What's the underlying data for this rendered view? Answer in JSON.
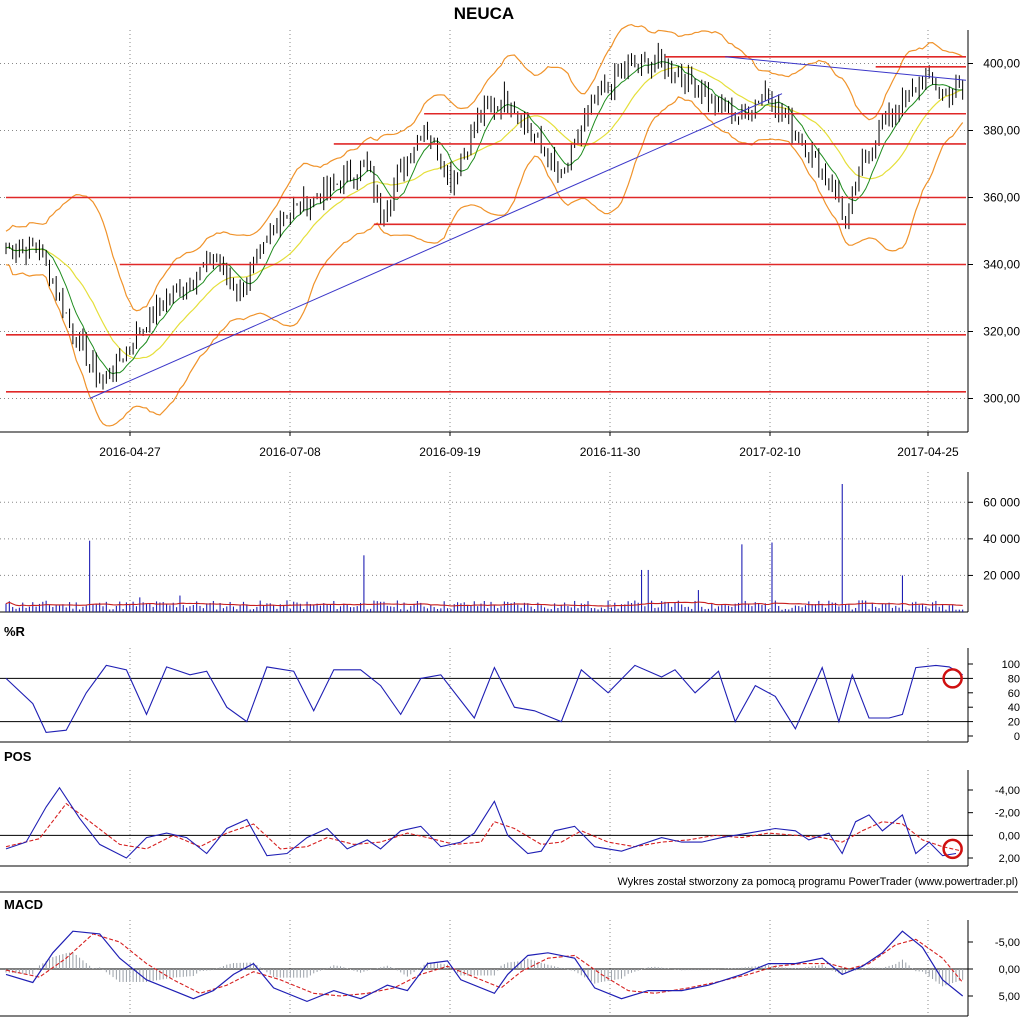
{
  "chart_data": {
    "type": "line",
    "title": "NEUCA",
    "credit": "Wykres został stworzony za pomocą programu PowerTrader (www.powertrader.pl)",
    "x_tick_labels": [
      "2016-04-27",
      "2016-07-08",
      "2016-09-19",
      "2016-11-30",
      "2017-02-10",
      "2017-04-25"
    ],
    "colors": {
      "candles": "#000000",
      "bollinger": "#f0932b",
      "ma_short": "#1e8c1e",
      "ma_long": "#e5df3a",
      "horizontal_levels": "#e02828",
      "trendline": "#3b37c9",
      "indicator_blue": "#1f1fb4",
      "indicator_red": "#d62020",
      "volume_avg": "#c81e1e",
      "grid": "#888888"
    },
    "panels": [
      {
        "id": "price",
        "label": "",
        "y_tick_labels": [
          "400,00",
          "380,00",
          "360,00",
          "340,00",
          "320,00",
          "300,00"
        ],
        "ylim": [
          290,
          410
        ],
        "price_path": [
          [
            0,
            345
          ],
          [
            10,
            345
          ],
          [
            20,
            320
          ],
          [
            28,
            305
          ],
          [
            33,
            310
          ],
          [
            40,
            320
          ],
          [
            48,
            330
          ],
          [
            55,
            335
          ],
          [
            62,
            342
          ],
          [
            70,
            332
          ],
          [
            75,
            340
          ],
          [
            82,
            355
          ],
          [
            90,
            358
          ],
          [
            100,
            365
          ],
          [
            108,
            370
          ],
          [
            112,
            355
          ],
          [
            120,
            372
          ],
          [
            125,
            382
          ],
          [
            133,
            365
          ],
          [
            142,
            385
          ],
          [
            150,
            390
          ],
          [
            160,
            375
          ],
          [
            166,
            365
          ],
          [
            175,
            388
          ],
          [
            185,
            398
          ],
          [
            195,
            401
          ],
          [
            205,
            395
          ],
          [
            212,
            388
          ],
          [
            220,
            384
          ],
          [
            227,
            392
          ],
          [
            232,
            385
          ],
          [
            240,
            374
          ],
          [
            248,
            362
          ],
          [
            251,
            352
          ],
          [
            256,
            370
          ],
          [
            262,
            382
          ],
          [
            268,
            388
          ],
          [
            274,
            395
          ],
          [
            280,
            392
          ],
          [
            286,
            392
          ]
        ],
        "horizontal_levels": [
          {
            "value": 402,
            "from": 197,
            "to": 287
          },
          {
            "value": 399,
            "from": 260,
            "to": 287
          },
          {
            "value": 385,
            "from": 125,
            "to": 287
          },
          {
            "value": 376,
            "from": 98,
            "to": 287
          },
          {
            "value": 360,
            "from": 0,
            "to": 287
          },
          {
            "value": 352,
            "from": 110,
            "to": 287
          },
          {
            "value": 340,
            "from": 34,
            "to": 287
          },
          {
            "value": 319,
            "from": 0,
            "to": 287
          },
          {
            "value": 302,
            "from": 0,
            "to": 287
          }
        ],
        "trendlines": [
          {
            "from": [
              25,
              300
            ],
            "to": [
              232,
              391
            ]
          },
          {
            "from": [
              215,
              402
            ],
            "to": [
              287,
              395
            ]
          }
        ]
      },
      {
        "id": "volume",
        "label": "",
        "y_tick_labels": [
          "60 000",
          "40 000",
          "20 000"
        ],
        "ylim": [
          0,
          70000
        ],
        "baseline_volume": 4000,
        "spikes": [
          [
            25,
            39000
          ],
          [
            107,
            31000
          ],
          [
            190,
            23000
          ],
          [
            192,
            23000
          ],
          [
            220,
            37000
          ],
          [
            229,
            38000
          ],
          [
            250,
            70000
          ],
          [
            268,
            20000
          ],
          [
            40,
            8000
          ],
          [
            52,
            9000
          ],
          [
            143,
            6000
          ],
          [
            207,
            12000
          ]
        ]
      },
      {
        "id": "williams_r",
        "label": "%R",
        "y_tick_labels": [
          "100",
          "80",
          "60",
          "40",
          "20",
          "0"
        ],
        "ylim": [
          0,
          100
        ],
        "reference_lines": [
          80,
          20
        ],
        "path": [
          [
            0,
            80
          ],
          [
            8,
            45
          ],
          [
            12,
            5
          ],
          [
            18,
            8
          ],
          [
            24,
            60
          ],
          [
            30,
            98
          ],
          [
            36,
            92
          ],
          [
            42,
            30
          ],
          [
            48,
            96
          ],
          [
            55,
            85
          ],
          [
            60,
            90
          ],
          [
            66,
            40
          ],
          [
            72,
            20
          ],
          [
            78,
            96
          ],
          [
            86,
            90
          ],
          [
            92,
            35
          ],
          [
            98,
            92
          ],
          [
            106,
            92
          ],
          [
            112,
            70
          ],
          [
            118,
            30
          ],
          [
            124,
            80
          ],
          [
            130,
            85
          ],
          [
            140,
            25
          ],
          [
            146,
            95
          ],
          [
            152,
            40
          ],
          [
            158,
            35
          ],
          [
            166,
            20
          ],
          [
            172,
            92
          ],
          [
            180,
            60
          ],
          [
            188,
            98
          ],
          [
            196,
            82
          ],
          [
            200,
            92
          ],
          [
            206,
            60
          ],
          [
            213,
            90
          ],
          [
            218,
            20
          ],
          [
            224,
            70
          ],
          [
            230,
            55
          ],
          [
            236,
            10
          ],
          [
            244,
            95
          ],
          [
            249,
            20
          ],
          [
            253,
            85
          ],
          [
            258,
            25
          ],
          [
            264,
            25
          ],
          [
            268,
            30
          ],
          [
            272,
            95
          ],
          [
            278,
            98
          ],
          [
            282,
            96
          ],
          [
            286,
            85
          ]
        ],
        "marker": {
          "x": 283,
          "value": 80
        }
      },
      {
        "id": "pos",
        "label": "POS",
        "y_tick_labels": [
          "2,00",
          "0,00",
          "-2,00",
          "-4,00"
        ],
        "ylim": [
          -4.5,
          3
        ],
        "reference_lines": [
          0
        ],
        "blue_path": [
          [
            0,
            1.2
          ],
          [
            6,
            0.6
          ],
          [
            12,
            -2.5
          ],
          [
            16,
            -4.2
          ],
          [
            22,
            -1.5
          ],
          [
            28,
            0.8
          ],
          [
            36,
            2.0
          ],
          [
            42,
            0.2
          ],
          [
            48,
            -0.2
          ],
          [
            54,
            0.2
          ],
          [
            60,
            1.6
          ],
          [
            66,
            -0.6
          ],
          [
            72,
            -1.4
          ],
          [
            78,
            1.8
          ],
          [
            84,
            1.6
          ],
          [
            90,
            0.2
          ],
          [
            96,
            -0.6
          ],
          [
            102,
            1.2
          ],
          [
            108,
            0.4
          ],
          [
            112,
            1.2
          ],
          [
            118,
            -0.4
          ],
          [
            124,
            -0.8
          ],
          [
            130,
            1.0
          ],
          [
            136,
            0.6
          ],
          [
            140,
            -0.2
          ],
          [
            146,
            -3.0
          ],
          [
            150,
            0.0
          ],
          [
            156,
            1.6
          ],
          [
            160,
            1.4
          ],
          [
            164,
            -0.4
          ],
          [
            170,
            -0.8
          ],
          [
            176,
            1.0
          ],
          [
            184,
            1.4
          ],
          [
            190,
            0.8
          ],
          [
            196,
            0.2
          ],
          [
            202,
            0.6
          ],
          [
            208,
            0.6
          ],
          [
            214,
            0.2
          ],
          [
            222,
            -0.2
          ],
          [
            230,
            -0.6
          ],
          [
            236,
            -0.4
          ],
          [
            240,
            0.4
          ],
          [
            246,
            -0.2
          ],
          [
            250,
            1.6
          ],
          [
            254,
            -1.2
          ],
          [
            258,
            -1.8
          ],
          [
            262,
            -0.4
          ],
          [
            268,
            -1.8
          ],
          [
            272,
            1.6
          ],
          [
            276,
            0.6
          ],
          [
            280,
            1.8
          ],
          [
            284,
            1.6
          ]
        ],
        "red_path": [
          [
            0,
            1.0
          ],
          [
            10,
            0.3
          ],
          [
            18,
            -2.8
          ],
          [
            26,
            -1.0
          ],
          [
            34,
            0.8
          ],
          [
            42,
            1.2
          ],
          [
            50,
            0.0
          ],
          [
            58,
            1.0
          ],
          [
            66,
            -0.2
          ],
          [
            74,
            -1.0
          ],
          [
            82,
            1.2
          ],
          [
            90,
            1.0
          ],
          [
            96,
            0.2
          ],
          [
            104,
            0.8
          ],
          [
            112,
            0.6
          ],
          [
            120,
            -0.2
          ],
          [
            126,
            0.2
          ],
          [
            134,
            0.8
          ],
          [
            142,
            0.6
          ],
          [
            146,
            -1.2
          ],
          [
            152,
            -0.6
          ],
          [
            160,
            0.8
          ],
          [
            166,
            0.6
          ],
          [
            172,
            -0.4
          ],
          [
            180,
            0.6
          ],
          [
            188,
            1.0
          ],
          [
            196,
            0.6
          ],
          [
            204,
            0.4
          ],
          [
            212,
            0.0
          ],
          [
            220,
            0.2
          ],
          [
            228,
            -0.2
          ],
          [
            236,
            0.0
          ],
          [
            244,
            0.2
          ],
          [
            250,
            0.6
          ],
          [
            256,
            -0.4
          ],
          [
            262,
            -1.2
          ],
          [
            268,
            -1.0
          ],
          [
            274,
            0.4
          ],
          [
            280,
            1.0
          ],
          [
            286,
            1.4
          ]
        ],
        "marker": {
          "x": 283,
          "value": 1.2
        }
      },
      {
        "id": "macd",
        "label": "MACD",
        "y_tick_labels": [
          "5,00",
          "0,00",
          "-5,00"
        ],
        "ylim": [
          -7.5,
          7
        ],
        "reference_lines": [
          0
        ],
        "blue_path": [
          [
            0,
            1.0
          ],
          [
            8,
            2.5
          ],
          [
            14,
            -3.0
          ],
          [
            20,
            -7.0
          ],
          [
            28,
            -6.5
          ],
          [
            34,
            -2.0
          ],
          [
            42,
            2.0
          ],
          [
            48,
            3.5
          ],
          [
            56,
            5.5
          ],
          [
            62,
            4.0
          ],
          [
            68,
            1.0
          ],
          [
            74,
            -1.0
          ],
          [
            80,
            3.5
          ],
          [
            90,
            6.0
          ],
          [
            98,
            4.0
          ],
          [
            106,
            5.5
          ],
          [
            114,
            3.0
          ],
          [
            120,
            4.0
          ],
          [
            126,
            -1.0
          ],
          [
            132,
            -1.5
          ],
          [
            136,
            2.0
          ],
          [
            146,
            4.5
          ],
          [
            150,
            1.0
          ],
          [
            156,
            -2.5
          ],
          [
            162,
            -3.0
          ],
          [
            170,
            -2.0
          ],
          [
            176,
            3.5
          ],
          [
            184,
            5.5
          ],
          [
            192,
            4.0
          ],
          [
            202,
            4.0
          ],
          [
            210,
            3.0
          ],
          [
            220,
            1.0
          ],
          [
            228,
            -1.0
          ],
          [
            236,
            -1.0
          ],
          [
            244,
            -2.0
          ],
          [
            250,
            1.0
          ],
          [
            256,
            -0.5
          ],
          [
            262,
            -3.0
          ],
          [
            268,
            -7.0
          ],
          [
            274,
            -4.0
          ],
          [
            280,
            2.0
          ],
          [
            286,
            5.0
          ]
        ],
        "red_path": [
          [
            0,
            0.2
          ],
          [
            10,
            1.5
          ],
          [
            18,
            -2.0
          ],
          [
            26,
            -6.5
          ],
          [
            34,
            -5.0
          ],
          [
            42,
            -1.0
          ],
          [
            50,
            2.0
          ],
          [
            58,
            4.5
          ],
          [
            66,
            3.0
          ],
          [
            74,
            0.5
          ],
          [
            82,
            2.0
          ],
          [
            92,
            4.5
          ],
          [
            100,
            5.0
          ],
          [
            108,
            4.5
          ],
          [
            116,
            3.5
          ],
          [
            124,
            1.0
          ],
          [
            132,
            -0.5
          ],
          [
            140,
            1.5
          ],
          [
            148,
            3.5
          ],
          [
            154,
            0.5
          ],
          [
            162,
            -2.0
          ],
          [
            170,
            -2.5
          ],
          [
            178,
            1.0
          ],
          [
            186,
            4.0
          ],
          [
            194,
            4.5
          ],
          [
            204,
            3.5
          ],
          [
            212,
            2.5
          ],
          [
            222,
            1.0
          ],
          [
            230,
            -0.5
          ],
          [
            238,
            -1.0
          ],
          [
            246,
            -1.0
          ],
          [
            252,
            0.0
          ],
          [
            258,
            -1.0
          ],
          [
            266,
            -4.5
          ],
          [
            272,
            -5.5
          ],
          [
            280,
            -2.0
          ],
          [
            286,
            2.5
          ]
        ]
      }
    ]
  }
}
